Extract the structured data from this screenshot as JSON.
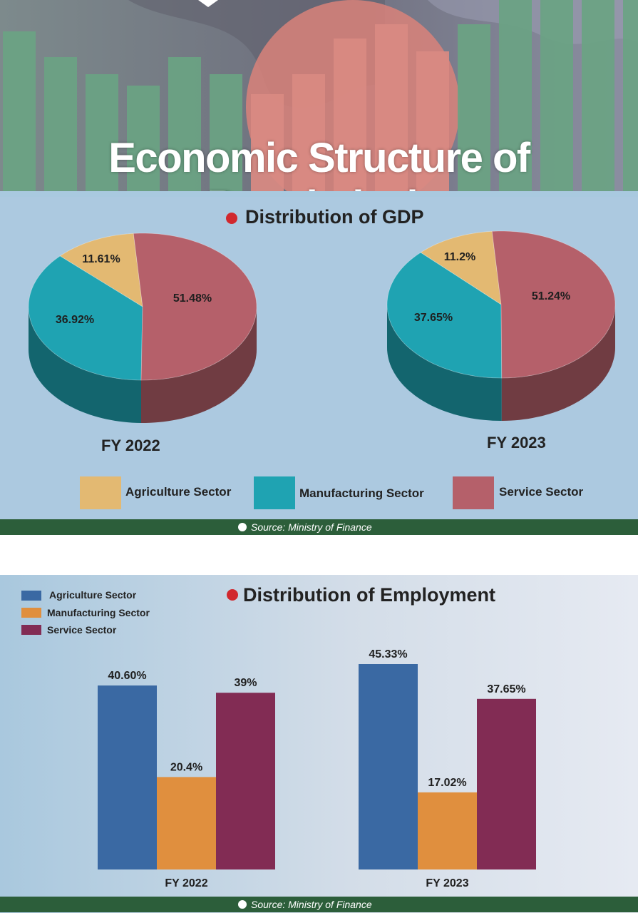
{
  "banner": {
    "title": "Economic Structure of Bangladesh"
  },
  "gdp": {
    "title": "Distribution of GDP",
    "source": "Source: Ministry of Finance",
    "legend": [
      {
        "label": "Agriculture Sector",
        "color": "#e3b972"
      },
      {
        "label": "Manufacturing Sector",
        "color": "#1fa3b2"
      },
      {
        "label": "Service Sector",
        "color": "#b5606a"
      }
    ]
  },
  "employment": {
    "title": "Distribution of Employment",
    "source": "Source: Ministry of Finance",
    "legend": [
      {
        "label": "Agriculture Sector",
        "color": "#3a69a3"
      },
      {
        "label": "Manufacturing Sector",
        "color": "#e08f3e"
      },
      {
        "label": "Service Sector",
        "color": "#822c54"
      }
    ]
  },
  "chart_data": [
    {
      "type": "pie",
      "title": "Distribution of GDP",
      "categories": [
        "Agriculture Sector",
        "Manufacturing Sector",
        "Service Sector"
      ],
      "pies": [
        {
          "label": "FY 2022",
          "values": [
            11.61,
            36.92,
            51.48
          ],
          "value_labels": [
            "11.61%",
            "36.92%",
            "51.48%"
          ]
        },
        {
          "label": "FY 2023",
          "values": [
            11.2,
            37.65,
            51.24
          ],
          "value_labels": [
            "11.2%",
            "37.65%",
            "51.24%"
          ]
        }
      ],
      "colors": [
        "#e3b972",
        "#1fa3b2",
        "#b5606a"
      ],
      "legend_position": "bottom"
    },
    {
      "type": "bar",
      "title": "Distribution of Employment",
      "categories": [
        "FY 2022",
        "FY 2023"
      ],
      "series": [
        {
          "name": "Agriculture Sector",
          "values": [
            40.6,
            45.33
          ],
          "value_labels": [
            "40.60%",
            "45.33%"
          ],
          "color": "#3a69a3"
        },
        {
          "name": "Manufacturing Sector",
          "values": [
            20.4,
            17.02
          ],
          "value_labels": [
            "20.4%",
            "17.02%"
          ],
          "color": "#e08f3e"
        },
        {
          "name": "Service Sector",
          "values": [
            39,
            37.65
          ],
          "value_labels": [
            "39%",
            "37.65%"
          ],
          "color": "#822c54"
        }
      ],
      "ylim": [
        0,
        50
      ],
      "grid": false,
      "legend_position": "top-left"
    }
  ]
}
